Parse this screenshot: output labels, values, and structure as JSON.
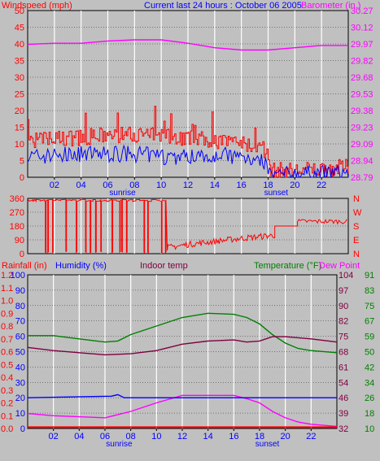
{
  "header": {
    "left": "Windspeed (mph)",
    "center": "Current last 24 hours : October 06 2005",
    "right": "Barometer (in.)"
  },
  "colors": {
    "wind": "#ff0000",
    "gust": "#ff0000",
    "wind_avg": "#0000ff",
    "barometer": "#ff00ff",
    "direction": "#ff0000",
    "rain": "#ff0000",
    "humidity": "#0000ff",
    "indoor": "#800040",
    "temperature": "#008000",
    "dewpoint": "#ff00ff",
    "plot_bg": "#c0c0c0",
    "grid": "#ffffff"
  },
  "x_axis": {
    "tick_labels": [
      "02",
      "04",
      "06",
      "08",
      "10",
      "12",
      "14",
      "16",
      "18",
      "20",
      "22"
    ],
    "sunrise": "sunrise",
    "sunset": "sunset"
  },
  "chart_data": [
    {
      "type": "line",
      "name": "wind-barometer",
      "x_range": [
        0,
        24
      ],
      "y_left": {
        "label": "Windspeed (mph)",
        "range": [
          0,
          50
        ],
        "ticks": [
          "0",
          "5",
          "10",
          "15",
          "20",
          "25",
          "30",
          "35",
          "40",
          "45",
          "50"
        ]
      },
      "y_right": {
        "label": "Barometer (in.)",
        "range": [
          28.79,
          30.27
        ],
        "ticks": [
          "28.79",
          "28.94",
          "29.09",
          "29.23",
          "29.38",
          "29.53",
          "29.68",
          "29.82",
          "29.97",
          "30.12",
          "30.27"
        ]
      },
      "barometer": {
        "x": [
          0,
          2,
          4,
          6,
          8,
          10,
          12,
          14,
          16,
          18,
          20,
          22,
          24
        ],
        "y": [
          29.97,
          29.98,
          29.98,
          30.0,
          30.01,
          30.01,
          29.98,
          29.94,
          29.92,
          29.92,
          29.94,
          29.96,
          29.96
        ]
      },
      "gust_envelope": {
        "x": [
          0,
          4,
          8,
          11,
          14,
          16,
          17.2,
          17.8,
          18.2,
          20,
          24
        ],
        "y": [
          11,
          12,
          13,
          12,
          11,
          10,
          9,
          8,
          2,
          2,
          3
        ]
      },
      "wind_average": {
        "x": [
          0,
          4,
          8,
          11,
          14,
          16,
          17.2,
          17.8,
          18.2,
          20,
          24
        ],
        "y": [
          6,
          7,
          7,
          6,
          7,
          6,
          6,
          4,
          0.5,
          1,
          1.5
        ]
      },
      "sunrise_x": 7.1,
      "sunset_x": 18.6
    },
    {
      "type": "line",
      "name": "wind-direction",
      "x_range": [
        0,
        24
      ],
      "y_left": {
        "range": [
          0,
          360
        ],
        "ticks": [
          "0",
          "90",
          "180",
          "270",
          "360"
        ]
      },
      "y_right": {
        "ticks": [
          "N",
          "W",
          "S",
          "E",
          "N"
        ]
      },
      "direction": {
        "segments": [
          {
            "x": [
              0,
              10.3
            ],
            "level": 350,
            "dips_to": 0
          },
          {
            "x": [
              10.4,
              11.5
            ],
            "level": 50
          },
          {
            "x": [
              11.5,
              18.5
            ],
            "level": 90,
            "to": 120
          },
          {
            "x": [
              18.5,
              20.2
            ],
            "level": 180
          },
          {
            "x": [
              20.2,
              24
            ],
            "level": 210
          }
        ]
      }
    },
    {
      "type": "line",
      "name": "temperature-humidity-rain",
      "x_range": [
        0,
        24
      ],
      "headers": {
        "rain": "Rainfall (in)",
        "humidity": "Humidity (%)",
        "indoor": "Indoor temp",
        "temperature": "Temperature (°F)",
        "dewpoint": "Dew Point"
      },
      "y_rain": {
        "range": [
          0,
          1.2
        ],
        "ticks": [
          "0.0",
          "0.1",
          "0.2",
          "0.3",
          "0.4",
          "0.5",
          "0.6",
          "0.7",
          "0.8",
          "0.9",
          "1.0",
          "1.1",
          "1.2"
        ]
      },
      "y_humidity": {
        "range": [
          0,
          100
        ],
        "ticks": [
          "0",
          "10",
          "20",
          "30",
          "40",
          "50",
          "60",
          "70",
          "80",
          "90",
          "100"
        ]
      },
      "y_temp": {
        "range": [
          32,
          104
        ],
        "ticks": [
          "32",
          "39",
          "46",
          "54",
          "61",
          "68",
          "75",
          "82",
          "90",
          "97",
          "104"
        ]
      },
      "y_dew": {
        "ticks": [
          "10",
          "18",
          "26",
          "34",
          "42",
          "50",
          "59",
          "67",
          "75",
          "83",
          "91"
        ]
      },
      "temperature": {
        "x": [
          0,
          2,
          4,
          6,
          7,
          8,
          10,
          12,
          14,
          16,
          17,
          18,
          19,
          20,
          21,
          22,
          24
        ],
        "y": [
          75.5,
          75.5,
          74,
          72.5,
          73,
          76,
          80,
          84,
          86,
          85.5,
          84,
          81,
          76,
          72,
          69.5,
          68.5,
          67.5
        ]
      },
      "indoor_temp": {
        "x": [
          0,
          2,
          4,
          6,
          8,
          10,
          12,
          14,
          16,
          17,
          18,
          19,
          20,
          22,
          24
        ],
        "y": [
          70,
          68.5,
          67.5,
          66.5,
          67,
          68.5,
          71.5,
          73,
          73.5,
          72.5,
          73,
          75,
          75,
          74,
          72.5
        ]
      },
      "dew_point": {
        "x": [
          0,
          2,
          4,
          6,
          8,
          10,
          12,
          14,
          16,
          17,
          18,
          19,
          20,
          21,
          22,
          24
        ],
        "y": [
          39,
          38,
          37.5,
          37,
          40,
          44,
          47.5,
          47.5,
          47.5,
          46,
          44,
          40,
          37,
          35,
          34,
          33
        ]
      },
      "humidity": {
        "x": [
          0,
          6.5,
          7,
          7.5,
          24
        ],
        "y": [
          20,
          21,
          22,
          20,
          20
        ]
      },
      "rainfall": {
        "x": [
          0,
          24
        ],
        "y": [
          0.01,
          0.01
        ]
      },
      "sunrise_x": 7.1,
      "sunset_x": 18.6
    }
  ]
}
